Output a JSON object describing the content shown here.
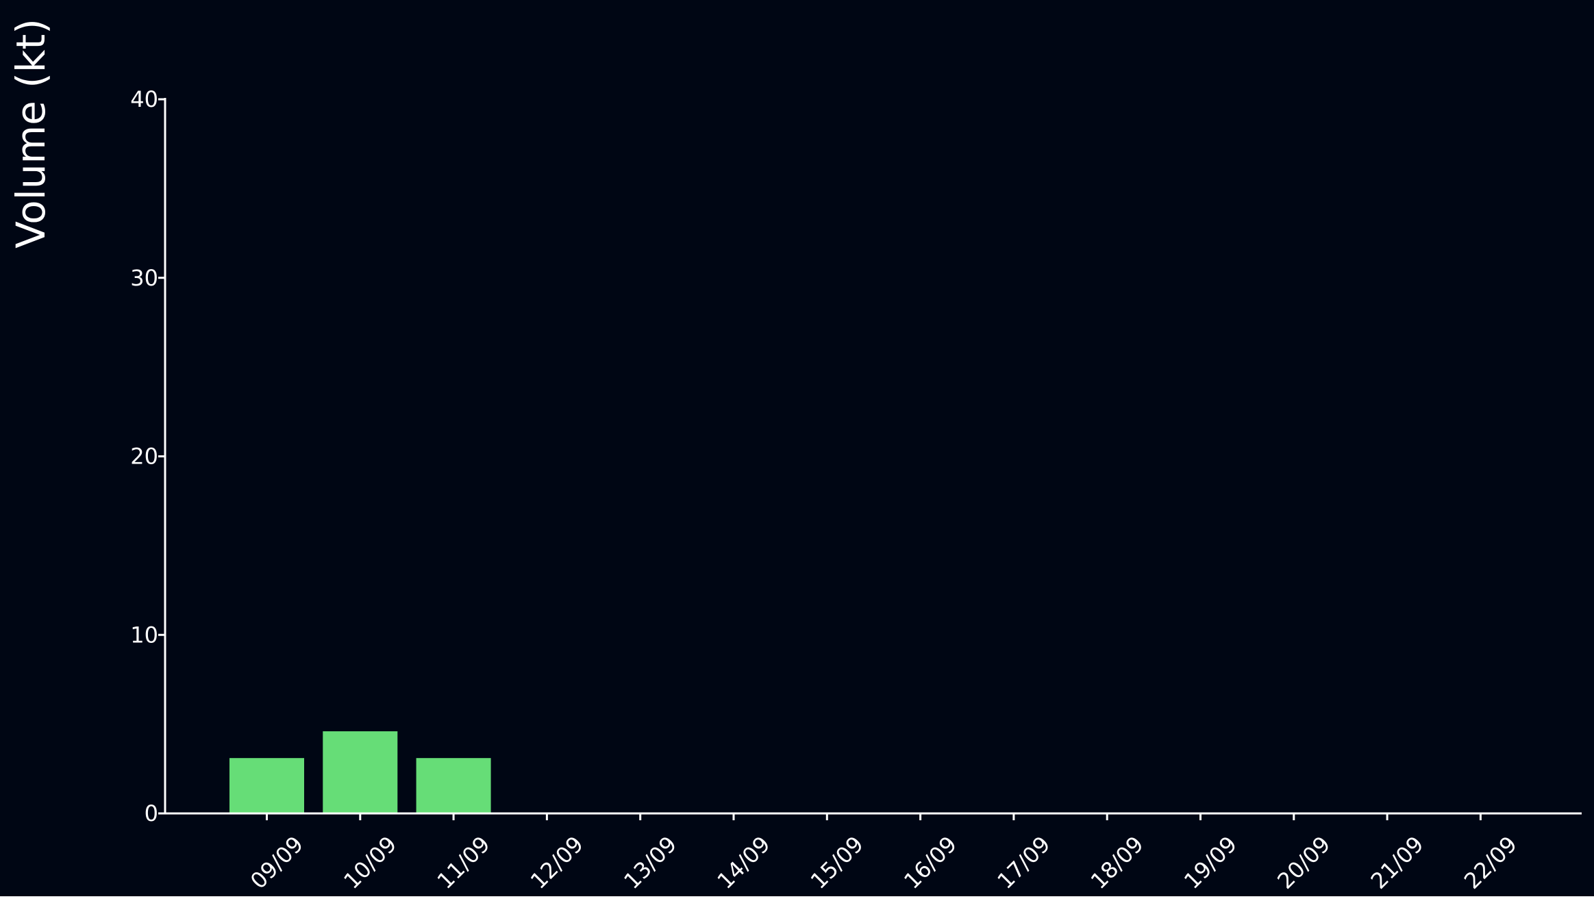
{
  "colors": {
    "background": "#000614",
    "bar": "#66dd77",
    "axis": "#ffffff",
    "text": "#ffffff"
  },
  "chart_data": {
    "type": "bar",
    "title": "",
    "xlabel": "",
    "ylabel": "Volume (kt)",
    "categories": [
      "09/09",
      "10/09",
      "11/09",
      "12/09",
      "13/09",
      "14/09",
      "15/09",
      "16/09",
      "17/09",
      "18/09",
      "19/09",
      "20/09",
      "21/09",
      "22/09"
    ],
    "values": [
      3.1,
      4.6,
      3.1,
      0,
      0,
      0,
      0,
      0,
      0,
      0,
      0,
      0,
      0,
      0
    ],
    "ylim": [
      0,
      40
    ],
    "yticks": [
      0,
      10,
      20,
      30,
      40
    ],
    "grid": false,
    "legend": "none"
  }
}
